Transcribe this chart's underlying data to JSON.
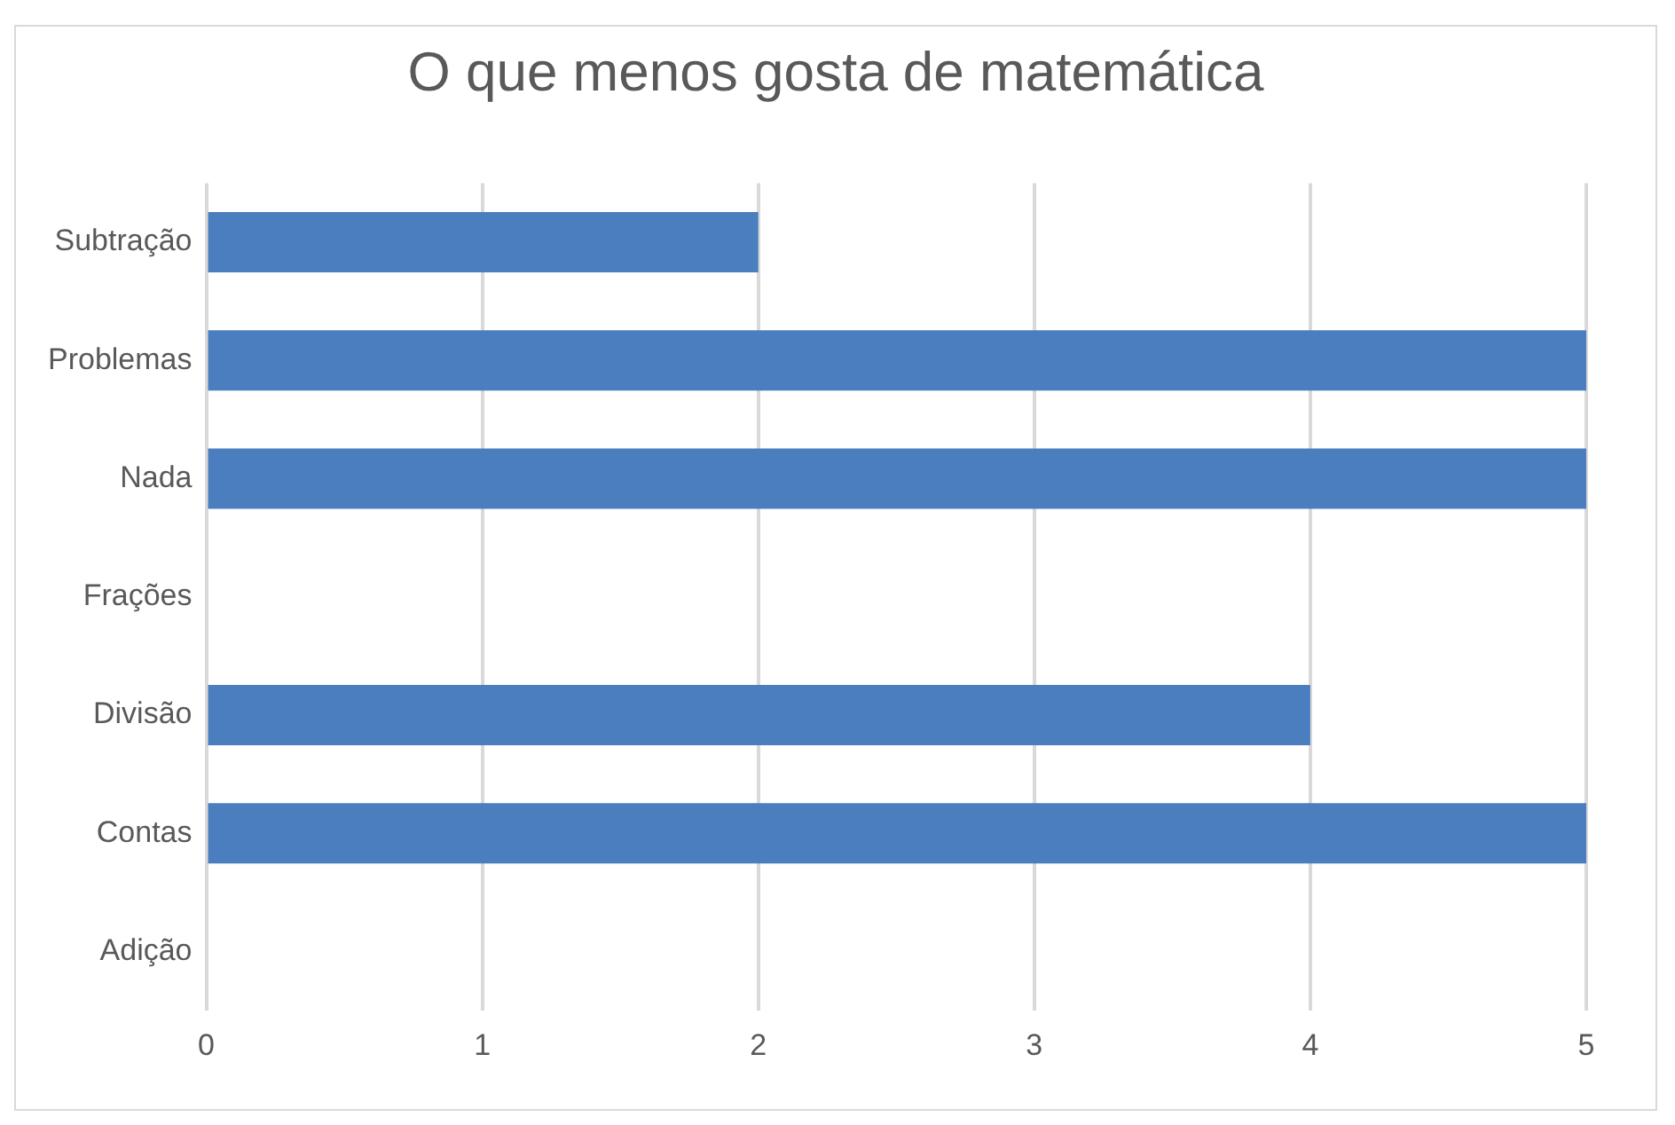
{
  "chart_data": {
    "type": "bar",
    "title": "O que menos gosta de matemática",
    "orientation": "horizontal",
    "categories": [
      "Subtração",
      "Problemas",
      "Nada",
      "Frações",
      "Divisão",
      "Contas",
      "Adição"
    ],
    "values": [
      2,
      5,
      5,
      0,
      4,
      5,
      0
    ],
    "color": "#4a7ebf",
    "xlim": [
      0,
      5
    ],
    "xticks": [
      0,
      1,
      2,
      3,
      4,
      5
    ],
    "grid": "x"
  }
}
